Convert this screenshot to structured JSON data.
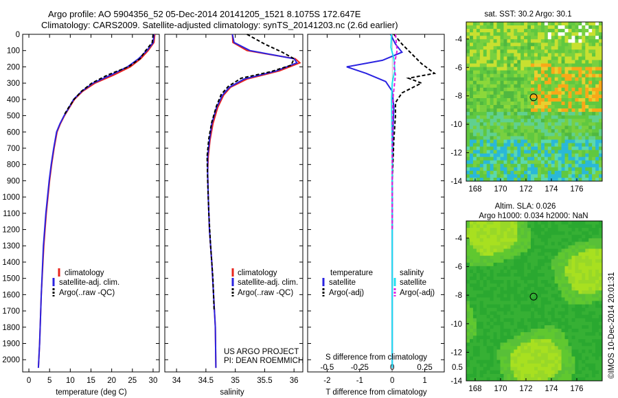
{
  "header": {
    "line1": "Argo profile: AO 5904356_52 05-Dec-2014 20141205_1521 8.1075S 172.647E",
    "line2": "Climatology: CARS2009. Satellite-adjusted climatology: synTS_20141203.nc (2.6d earlier)"
  },
  "colors": {
    "climatology": "#e8241c",
    "satellite": "#2a22e0",
    "argo": "#000000",
    "satellite_s": "#22e0ee",
    "argo_s": "#e020e0"
  },
  "chart_data": [
    {
      "type": "line",
      "id": "temperature",
      "xlabel": "temperature (deg C)",
      "ylabel": "",
      "xlim": [
        -1.5,
        31.5
      ],
      "ylim": [
        2075,
        0
      ],
      "xticks": [
        0,
        5,
        10,
        15,
        20,
        25,
        30
      ],
      "yticks": [
        0,
        100,
        200,
        300,
        400,
        500,
        600,
        700,
        800,
        900,
        1000,
        1100,
        1200,
        1300,
        1400,
        1500,
        1600,
        1700,
        1800,
        1900,
        2000
      ],
      "legend": [
        "climatology",
        "satellite-adj. clim.",
        "Argo(..raw -QC)"
      ],
      "series": [
        {
          "name": "climatology",
          "color": "#e8241c",
          "x": [
            30.4,
            30.2,
            28.8,
            27.0,
            24.5,
            20.5,
            16.0,
            13.0,
            11.0,
            9.8,
            8.6,
            7.6,
            6.8,
            6.1,
            5.5,
            5.0,
            4.2,
            3.6,
            3.0,
            2.6,
            2.3
          ],
          "y": [
            0,
            50,
            100,
            150,
            200,
            250,
            300,
            350,
            400,
            450,
            500,
            550,
            600,
            700,
            800,
            900,
            1100,
            1300,
            1600,
            1900,
            2050
          ]
        },
        {
          "name": "satellite-adj. clim.",
          "color": "#2a22e0",
          "x": [
            30.2,
            30.0,
            28.5,
            26.5,
            23.8,
            19.8,
            15.5,
            12.8,
            10.8,
            9.7,
            8.5,
            7.5,
            6.7,
            6.0,
            5.4,
            4.9,
            4.1,
            3.5,
            3.0,
            2.6,
            2.3
          ],
          "y": [
            0,
            50,
            100,
            150,
            200,
            250,
            300,
            350,
            400,
            450,
            500,
            550,
            600,
            700,
            800,
            900,
            1100,
            1300,
            1600,
            1900,
            2050
          ]
        },
        {
          "name": "Argo(..raw -QC)",
          "color": "#000000",
          "x": [
            30.0,
            29.8,
            28.2,
            26.8,
            24.0,
            19.0,
            15.2,
            12.7,
            10.9,
            9.6,
            8.4
          ],
          "y": [
            0,
            50,
            100,
            150,
            200,
            250,
            300,
            350,
            400,
            450,
            500
          ]
        }
      ]
    },
    {
      "type": "line",
      "id": "salinity",
      "xlabel": "salinity",
      "xlim": [
        33.8,
        36.15
      ],
      "ylim": [
        2075,
        0
      ],
      "xticks": [
        34,
        34.5,
        35,
        35.5,
        36
      ],
      "legend": [
        "climatology",
        "satellite-adj. clim.",
        "Argo(..raw -QC)"
      ],
      "annotation": [
        "US ARGO PROJECT",
        "PI: DEAN ROEMMICH"
      ],
      "series": [
        {
          "name": "climatology",
          "color": "#e8241c",
          "x": [
            34.95,
            34.96,
            35.2,
            36.02,
            36.1,
            35.75,
            35.2,
            34.92,
            34.8,
            34.7,
            34.62,
            34.57,
            34.54,
            34.53,
            34.54,
            34.56,
            34.6,
            34.63,
            34.66,
            34.67
          ],
          "y": [
            0,
            50,
            100,
            150,
            175,
            225,
            275,
            325,
            375,
            450,
            550,
            650,
            750,
            850,
            1000,
            1200,
            1400,
            1600,
            1800,
            2050
          ]
        },
        {
          "name": "satellite-adj. clim.",
          "color": "#2a22e0",
          "x": [
            34.95,
            34.98,
            35.25,
            36.0,
            36.05,
            35.7,
            35.15,
            34.9,
            34.78,
            34.68,
            34.6,
            34.56,
            34.53,
            34.53,
            34.54,
            34.56,
            34.6,
            34.63,
            34.66,
            34.67
          ],
          "y": [
            0,
            50,
            100,
            150,
            175,
            225,
            275,
            325,
            375,
            450,
            550,
            650,
            750,
            850,
            1000,
            1200,
            1400,
            1600,
            1800,
            2050
          ]
        },
        {
          "name": "Argo(..raw -QC)",
          "color": "#000000",
          "x": [
            35.2,
            35.5,
            35.8,
            36.0,
            35.95,
            35.6,
            35.1,
            34.88,
            34.76,
            34.68,
            34.6,
            34.55,
            34.52,
            34.53,
            34.55,
            34.58,
            34.62,
            34.64
          ],
          "y": [
            0,
            60,
            110,
            150,
            190,
            230,
            270,
            320,
            370,
            440,
            540,
            640,
            750,
            900,
            1100,
            1300,
            1500,
            1700
          ]
        }
      ]
    },
    {
      "type": "line",
      "id": "difference",
      "xlabel": "T difference from climatology",
      "x2label": "S difference from climatology",
      "xlim": [
        -2.6,
        1.6
      ],
      "x2lim": [
        -0.65,
        0.4
      ],
      "ylim": [
        2075,
        0
      ],
      "xticks": [
        -2,
        -1,
        0,
        1
      ],
      "x2ticks": [
        -0.5,
        -0.25,
        0,
        0.25,
        0.5
      ],
      "x2ticklabels": [
        "-0.5",
        "-0.25",
        "0",
        "0.25",
        "0.5"
      ],
      "legend_titles": [
        "temperature",
        "salinity"
      ],
      "legend": [
        "satellite",
        "Argo(-adj)",
        "satellite",
        "Argo(-adj)"
      ],
      "series": [
        {
          "name": "satellite",
          "color": "#2a22e0",
          "x": [
            -0.05,
            0.1,
            0.3,
            -0.3,
            -1.4,
            -0.8,
            -0.2,
            0.0,
            0.05,
            0.02,
            0.0,
            0.0,
            0.0
          ],
          "y": [
            0,
            60,
            110,
            160,
            200,
            240,
            290,
            350,
            450,
            600,
            900,
            1400,
            2050
          ]
        },
        {
          "name": "Argo(-adj)",
          "color": "#000000",
          "x": [
            0.05,
            0.3,
            0.6,
            0.9,
            1.3,
            0.5,
            0.9,
            0.3,
            0.1,
            0.1,
            0.05,
            0.0,
            0.0
          ],
          "y": [
            0,
            60,
            120,
            180,
            240,
            270,
            300,
            360,
            420,
            500,
            650,
            900,
            1200
          ]
        },
        {
          "name": "satellite",
          "color": "#22e0ee",
          "x": [
            -0.02,
            -0.04,
            0.05,
            0.08,
            0.0,
            -0.02,
            0.0,
            0.0
          ],
          "y": [
            0,
            80,
            150,
            220,
            300,
            400,
            800,
            2050
          ]
        },
        {
          "name": "Argo(-adj)",
          "color": "#e020e0",
          "x": [
            0.1,
            0.15,
            0.05,
            0.1,
            0.02,
            0.0,
            0.0
          ],
          "y": [
            0,
            100,
            200,
            250,
            400,
            700,
            1200
          ]
        }
      ]
    },
    {
      "type": "heatmap",
      "id": "sst-map",
      "title": "sat. SST: 30.2  Argo: 30.1",
      "xlim": [
        167.3,
        178
      ],
      "ylim": [
        -14,
        -2.8
      ],
      "xticks": [
        168,
        170,
        172,
        174,
        176
      ],
      "yticks": [
        -4,
        -6,
        -8,
        -10,
        -12,
        -14
      ],
      "marker": {
        "x": 172.6,
        "y": -8.1
      }
    },
    {
      "type": "heatmap",
      "id": "sla-map",
      "title": "Altim. SLA: 0.026",
      "subtitle": "Argo h1000: 0.034 h2000: NaN",
      "xlim": [
        167.3,
        178
      ],
      "ylim": [
        -14,
        -2.8
      ],
      "xticks": [
        168,
        170,
        172,
        174,
        176
      ],
      "yticks": [
        -4,
        -6,
        -8,
        -10,
        -12,
        -14
      ],
      "marker": {
        "x": 172.6,
        "y": -8.1
      }
    }
  ],
  "footer": {
    "credit": "©IMOS 10-Dec-2014 20:01:31"
  }
}
